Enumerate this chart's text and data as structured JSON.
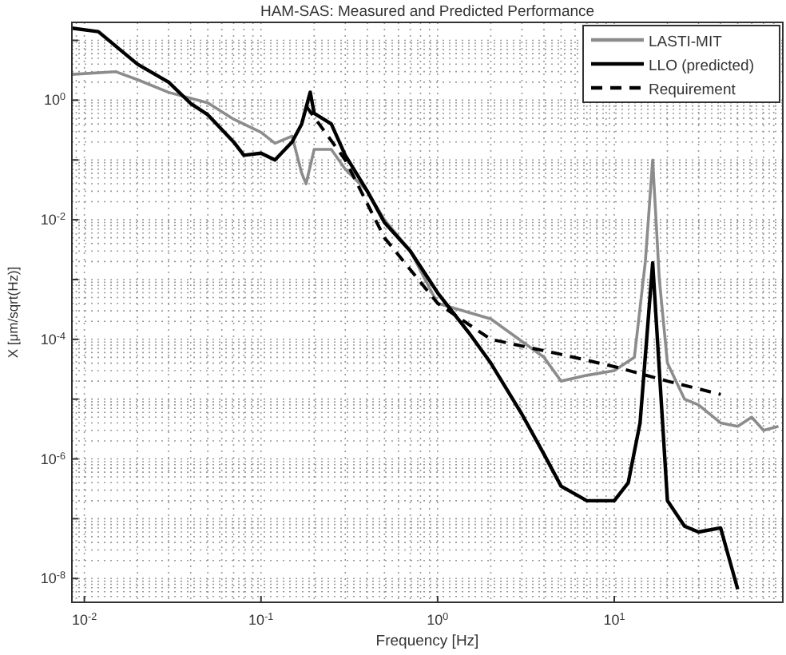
{
  "chart_data": {
    "type": "line",
    "title": "HAM-SAS: Measured and Predicted Performance",
    "xlabel": "Frequency [Hz]",
    "ylabel": "X [μm/sqrt(Hz)]",
    "log": "xy",
    "grid": true,
    "legend": "top right",
    "xlim": [
      0.0085,
      90
    ],
    "ylim": [
      4e-09,
      20
    ],
    "xticks": [
      {
        "value": 0.01,
        "label": "10$^{-2}$"
      },
      {
        "value": 0.1,
        "label": "10$^{-1}$"
      },
      {
        "value": 1,
        "label": "10$^{0}$"
      },
      {
        "value": 10,
        "label": "10$^{1}$"
      }
    ],
    "yticks": [
      {
        "value": 1e-08,
        "label": "10$^{-8}$"
      },
      {
        "value": 1e-07,
        "label": null
      },
      {
        "value": 1e-06,
        "label": "10$^{-6}$"
      },
      {
        "value": 1e-05,
        "label": null
      },
      {
        "value": 0.0001,
        "label": "10$^{-4}$"
      },
      {
        "value": 0.001,
        "label": null
      },
      {
        "value": 0.01,
        "label": "10$^{-2}$"
      },
      {
        "value": 0.1,
        "label": null
      },
      {
        "value": 1,
        "label": "10$^{0}$"
      },
      {
        "value": 10,
        "label": null
      }
    ],
    "series": [
      {
        "name": "LASTI-MIT",
        "color": "#8c8c8c",
        "line_style": "solid",
        "x": [
          0.0085,
          0.015,
          0.02,
          0.03,
          0.05,
          0.07,
          0.1,
          0.12,
          0.15,
          0.17,
          0.18,
          0.2,
          0.25,
          0.3,
          0.4,
          0.5,
          0.7,
          1,
          2,
          4,
          5,
          7,
          10,
          13,
          15,
          16.5,
          18,
          20,
          25,
          30,
          40,
          50,
          60,
          70,
          85
        ],
        "values": [
          2.7,
          3,
          2.2,
          1.35,
          0.9,
          0.48,
          0.29,
          0.19,
          0.25,
          0.06,
          0.04,
          0.15,
          0.15,
          0.07,
          0.03,
          0.01,
          0.003,
          0.0004,
          0.00022,
          5e-05,
          2e-05,
          2.5e-05,
          3e-05,
          5e-05,
          0.002,
          0.1,
          0.001,
          4e-05,
          1e-05,
          8e-06,
          4e-06,
          3.5e-06,
          5e-06,
          3e-06,
          3.5e-06
        ]
      },
      {
        "name": "LLO (predicted)",
        "color": "#000000",
        "line_style": "solid",
        "x": [
          0.0085,
          0.012,
          0.02,
          0.03,
          0.04,
          0.05,
          0.07,
          0.08,
          0.1,
          0.12,
          0.15,
          0.17,
          0.19,
          0.2,
          0.25,
          0.3,
          0.4,
          0.5,
          0.7,
          1,
          1.5,
          2,
          3,
          4,
          5,
          7,
          10,
          12,
          14,
          16.5,
          18,
          20,
          25,
          30,
          40,
          50
        ],
        "values": [
          16,
          14,
          4,
          2,
          0.88,
          0.57,
          0.2,
          0.12,
          0.13,
          0.1,
          0.2,
          0.4,
          1.36,
          0.6,
          0.4,
          0.12,
          0.03,
          0.009,
          0.003,
          0.0006,
          0.00013,
          4e-05,
          5.6e-06,
          1.2e-06,
          3.5e-07,
          2e-07,
          2e-07,
          4e-07,
          4e-06,
          0.0019,
          3e-05,
          2e-07,
          7.5e-08,
          6e-08,
          7e-08,
          6.6e-09
        ]
      },
      {
        "name": "Requirement",
        "color": "#000000",
        "line_style": "dashed",
        "x": [
          0.18,
          0.3,
          0.5,
          1,
          2,
          5,
          10,
          20,
          40
        ],
        "values": [
          0.8,
          0.1,
          0.005,
          0.0004,
          0.0001,
          5.6e-05,
          3.5e-05,
          2e-05,
          1.2e-05
        ]
      }
    ]
  }
}
